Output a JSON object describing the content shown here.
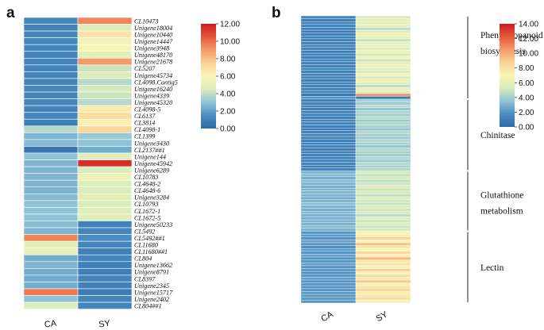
{
  "chart_data": [
    {
      "type": "heatmap",
      "panel": "a",
      "columns": [
        "CA",
        "SY"
      ],
      "rows": [
        "CL10473",
        "Unigene18004",
        "Unigene10440",
        "Unigene14447",
        "Unigene3948",
        "Unigene48170",
        "Unigene21678",
        "CL5207",
        "Unigene45734",
        "CL4098.Contig5",
        "Unigene16240",
        "Unigene4339",
        "Unigene45320",
        "CL4098-5",
        "CL6137",
        "CL3814",
        "CL4098-1",
        "CL1399",
        "Unigene3430",
        "CL2137##1",
        "Unigene144",
        "Unigene45942",
        "Unigene6289",
        "CL10783",
        "CL4648-2",
        "CL4648-6",
        "Unigene3284",
        "CL10793",
        "CL1672-1",
        "CL1672-5",
        "Unigene50233",
        "CL5492",
        "CL5492##1",
        "CL11680",
        "CL11680##1",
        "CL804",
        "Unigene13662",
        "Unigene8791",
        "CL8397",
        "Unigene2345",
        "Unigene15717",
        "Unigene2402",
        "CL804##1"
      ],
      "values": [
        [
          1.2,
          9.5
        ],
        [
          1.0,
          4.8
        ],
        [
          1.2,
          6.8
        ],
        [
          1.2,
          5.6
        ],
        [
          1.2,
          6.0
        ],
        [
          1.1,
          5.0
        ],
        [
          1.2,
          9.0
        ],
        [
          1.2,
          4.2
        ],
        [
          1.1,
          4.6
        ],
        [
          1.1,
          3.8
        ],
        [
          1.3,
          4.4
        ],
        [
          1.2,
          4.2
        ],
        [
          1.2,
          3.8
        ],
        [
          1.1,
          6.5
        ],
        [
          1.3,
          7.0
        ],
        [
          0.8,
          6.2
        ],
        [
          3.8,
          7.2
        ],
        [
          2.6,
          3.2
        ],
        [
          2.8,
          3.0
        ],
        [
          0.5,
          2.4
        ],
        [
          3.0,
          4.8
        ],
        [
          2.6,
          11.5
        ],
        [
          2.6,
          4.6
        ],
        [
          2.6,
          5.4
        ],
        [
          2.6,
          4.6
        ],
        [
          2.6,
          4.6
        ],
        [
          2.8,
          5.0
        ],
        [
          3.0,
          4.6
        ],
        [
          3.0,
          4.8
        ],
        [
          3.0,
          4.8
        ],
        [
          2.8,
          1.0
        ],
        [
          2.6,
          1.2
        ],
        [
          9.5,
          1.5
        ],
        [
          5.0,
          1.2
        ],
        [
          5.2,
          1.0
        ],
        [
          2.4,
          1.2
        ],
        [
          2.6,
          1.0
        ],
        [
          2.4,
          0.9
        ],
        [
          2.4,
          1.1
        ],
        [
          2.4,
          1.0
        ],
        [
          9.8,
          0.8
        ],
        [
          3.0,
          1.1
        ],
        [
          4.6,
          1.2
        ]
      ],
      "colorbar": {
        "min": 0,
        "max": 12,
        "ticks": [
          "12.00",
          "10.00",
          "8.00",
          "6.00",
          "4.00",
          "2.00",
          "0.00"
        ]
      },
      "colormap": [
        "#2d6aa6",
        "#4a8dc2",
        "#8fc3d6",
        "#d9ecbb",
        "#f8f5b4",
        "#fbd196",
        "#f59a69",
        "#e5583c",
        "#cc1b1f"
      ]
    },
    {
      "type": "heatmap",
      "panel": "b",
      "columns": [
        "CA",
        "SY"
      ],
      "row_count": 100,
      "groups": [
        {
          "label": "Phenylpropanoid biosynthesis",
          "start": 0,
          "end": 28
        },
        {
          "label": "Chinitase",
          "start": 29,
          "end": 53
        },
        {
          "label": "Glutathione metabolism",
          "start": 54,
          "end": 74
        },
        {
          "label": "Lectin",
          "start": 75,
          "end": 99
        }
      ],
      "values": [
        [
          1.4,
          5.2
        ],
        [
          1.1,
          6.0
        ],
        [
          1.2,
          5.8
        ],
        [
          1.3,
          6.2
        ],
        [
          1.3,
          4.6
        ],
        [
          1.0,
          5.4
        ],
        [
          1.2,
          6.6
        ],
        [
          1.2,
          5.9
        ],
        [
          1.1,
          4.8
        ],
        [
          1.3,
          6.3
        ],
        [
          1.2,
          6.0
        ],
        [
          1.4,
          5.6
        ],
        [
          1.0,
          6.4
        ],
        [
          1.2,
          5.1
        ],
        [
          1.2,
          7.0
        ],
        [
          1.3,
          4.9
        ],
        [
          1.1,
          6.1
        ],
        [
          1.2,
          6.3
        ],
        [
          1.4,
          5.7
        ],
        [
          1.2,
          5.3
        ],
        [
          1.2,
          6.6
        ],
        [
          1.3,
          5.5
        ],
        [
          1.1,
          6.2
        ],
        [
          1.2,
          5.8
        ],
        [
          1.2,
          4.7
        ],
        [
          1.2,
          6.1
        ],
        [
          1.2,
          5.5
        ],
        [
          0.8,
          10.5
        ],
        [
          2.0,
          0.8
        ],
        [
          1.0,
          4.0
        ],
        [
          1.2,
          3.8
        ],
        [
          1.3,
          4.4
        ],
        [
          1.1,
          3.6
        ],
        [
          1.2,
          4.2
        ],
        [
          1.0,
          3.9
        ],
        [
          1.2,
          4.6
        ],
        [
          1.3,
          3.7
        ],
        [
          1.2,
          4.3
        ],
        [
          1.1,
          4.1
        ],
        [
          1.0,
          3.5
        ],
        [
          1.3,
          4.5
        ],
        [
          1.2,
          4.0
        ],
        [
          1.2,
          3.8
        ],
        [
          1.1,
          4.3
        ],
        [
          1.3,
          4.1
        ],
        [
          1.2,
          3.6
        ],
        [
          1.0,
          4.4
        ],
        [
          1.2,
          4.0
        ],
        [
          1.2,
          3.9
        ],
        [
          1.1,
          4.2
        ],
        [
          1.2,
          3.7
        ],
        [
          1.3,
          4.5
        ],
        [
          1.2,
          4.1
        ],
        [
          1.2,
          4.3
        ],
        [
          3.0,
          5.2
        ],
        [
          3.2,
          4.8
        ],
        [
          2.8,
          5.4
        ],
        [
          3.3,
          4.6
        ],
        [
          3.0,
          5.0
        ],
        [
          2.9,
          5.6
        ],
        [
          3.1,
          4.9
        ],
        [
          3.2,
          5.3
        ],
        [
          3.0,
          4.7
        ],
        [
          2.8,
          5.5
        ],
        [
          3.1,
          5.1
        ],
        [
          3.3,
          4.8
        ],
        [
          3.0,
          5.4
        ],
        [
          2.9,
          5.0
        ],
        [
          3.2,
          5.2
        ],
        [
          3.0,
          4.6
        ],
        [
          2.8,
          5.3
        ],
        [
          3.1,
          5.0
        ],
        [
          3.0,
          5.5
        ],
        [
          3.2,
          4.9
        ],
        [
          3.0,
          5.2
        ],
        [
          2.0,
          6.6
        ],
        [
          2.2,
          7.4
        ],
        [
          1.9,
          8.6
        ],
        [
          2.3,
          7.0
        ],
        [
          2.1,
          9.2
        ],
        [
          1.8,
          7.8
        ],
        [
          2.2,
          6.8
        ],
        [
          2.0,
          8.4
        ],
        [
          2.4,
          7.2
        ],
        [
          1.9,
          9.6
        ],
        [
          2.1,
          7.6
        ],
        [
          2.3,
          8.0
        ],
        [
          2.0,
          6.9
        ],
        [
          2.2,
          8.8
        ],
        [
          1.8,
          7.1
        ],
        [
          2.1,
          8.2
        ],
        [
          2.3,
          7.5
        ],
        [
          2.0,
          9.0
        ],
        [
          2.2,
          6.7
        ],
        [
          1.9,
          7.9
        ],
        [
          2.1,
          8.5
        ],
        [
          2.3,
          7.3
        ],
        [
          2.0,
          7.7
        ],
        [
          2.2,
          8.1
        ],
        [
          2.1,
          6.6
        ]
      ],
      "colorbar": {
        "min": 0,
        "max": 14,
        "ticks": [
          "14.00",
          "12.00",
          "10.00",
          "8.00",
          "6.00",
          "4.00",
          "2.00",
          "0.00"
        ]
      },
      "colormap": [
        "#2d6aa6",
        "#4a8dc2",
        "#8fc3d6",
        "#d9ecbb",
        "#f8f5b4",
        "#fbd196",
        "#f59a69",
        "#e5583c",
        "#cc1b1f"
      ]
    }
  ]
}
